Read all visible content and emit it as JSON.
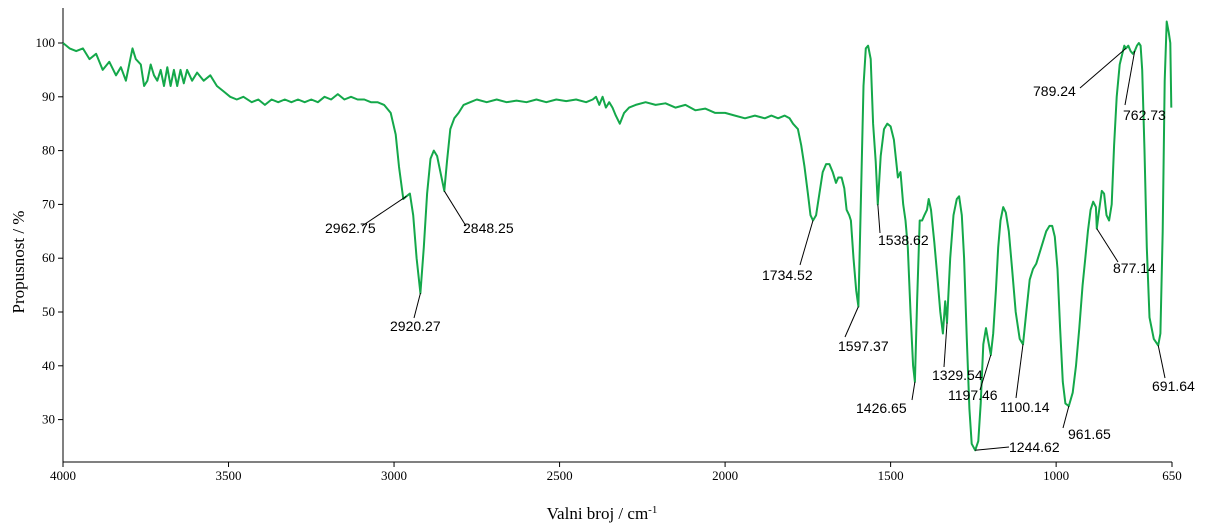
{
  "chart_data": {
    "type": "line",
    "xlabel": "Valni broj / cm",
    "xlabel_superscript": "-1",
    "ylabel": "Propusnost / %",
    "xlim": [
      4000,
      650
    ],
    "x_reversed": true,
    "ylim": [
      22,
      106
    ],
    "xticks": [
      4000,
      3500,
      3000,
      2500,
      2000,
      1500,
      1000,
      650
    ],
    "yticks": [
      30,
      40,
      50,
      60,
      70,
      80,
      90,
      100
    ],
    "grid": false,
    "line_color": "#14a84a",
    "series": [
      {
        "points": [
          [
            4000,
            100
          ],
          [
            3980,
            99
          ],
          [
            3960,
            98.5
          ],
          [
            3940,
            99
          ],
          [
            3920,
            97
          ],
          [
            3900,
            98
          ],
          [
            3880,
            95
          ],
          [
            3860,
            96.5
          ],
          [
            3840,
            94
          ],
          [
            3825,
            95.5
          ],
          [
            3810,
            93
          ],
          [
            3800,
            96
          ],
          [
            3790,
            99
          ],
          [
            3780,
            97
          ],
          [
            3765,
            96
          ],
          [
            3755,
            92
          ],
          [
            3745,
            93
          ],
          [
            3735,
            96
          ],
          [
            3725,
            94
          ],
          [
            3715,
            93
          ],
          [
            3705,
            95
          ],
          [
            3695,
            92
          ],
          [
            3685,
            95.5
          ],
          [
            3675,
            92
          ],
          [
            3665,
            95
          ],
          [
            3655,
            92
          ],
          [
            3645,
            95
          ],
          [
            3635,
            92.5
          ],
          [
            3625,
            95
          ],
          [
            3610,
            93
          ],
          [
            3595,
            94.5
          ],
          [
            3575,
            93
          ],
          [
            3555,
            94
          ],
          [
            3535,
            92
          ],
          [
            3515,
            91
          ],
          [
            3495,
            90
          ],
          [
            3475,
            89.5
          ],
          [
            3455,
            90
          ],
          [
            3430,
            89
          ],
          [
            3410,
            89.5
          ],
          [
            3390,
            88.5
          ],
          [
            3370,
            89.5
          ],
          [
            3350,
            89
          ],
          [
            3330,
            89.5
          ],
          [
            3310,
            89
          ],
          [
            3290,
            89.5
          ],
          [
            3270,
            89
          ],
          [
            3250,
            89.5
          ],
          [
            3230,
            89
          ],
          [
            3210,
            90
          ],
          [
            3190,
            89.5
          ],
          [
            3170,
            90.5
          ],
          [
            3150,
            89.5
          ],
          [
            3130,
            90
          ],
          [
            3110,
            89.5
          ],
          [
            3090,
            89.5
          ],
          [
            3070,
            89
          ],
          [
            3050,
            89
          ],
          [
            3030,
            88.5
          ],
          [
            3010,
            87
          ],
          [
            2995,
            83
          ],
          [
            2985,
            77
          ],
          [
            2972,
            71
          ],
          [
            2962.75,
            71.5
          ],
          [
            2952,
            72
          ],
          [
            2942,
            68
          ],
          [
            2932,
            60
          ],
          [
            2920.27,
            53.5
          ],
          [
            2910,
            62
          ],
          [
            2900,
            72
          ],
          [
            2890,
            78.5
          ],
          [
            2880,
            80
          ],
          [
            2870,
            79
          ],
          [
            2860,
            76
          ],
          [
            2848.25,
            72.5
          ],
          [
            2840,
            78
          ],
          [
            2830,
            84
          ],
          [
            2818,
            86
          ],
          [
            2805,
            87
          ],
          [
            2790,
            88.5
          ],
          [
            2770,
            89
          ],
          [
            2750,
            89.5
          ],
          [
            2720,
            89
          ],
          [
            2690,
            89.5
          ],
          [
            2660,
            89
          ],
          [
            2630,
            89.3
          ],
          [
            2600,
            89
          ],
          [
            2570,
            89.5
          ],
          [
            2540,
            89
          ],
          [
            2510,
            89.5
          ],
          [
            2480,
            89.2
          ],
          [
            2450,
            89.5
          ],
          [
            2420,
            89
          ],
          [
            2400,
            89.5
          ],
          [
            2390,
            90
          ],
          [
            2380,
            88.5
          ],
          [
            2370,
            90
          ],
          [
            2360,
            88
          ],
          [
            2350,
            89
          ],
          [
            2340,
            88
          ],
          [
            2330,
            86.5
          ],
          [
            2318,
            85
          ],
          [
            2305,
            87
          ],
          [
            2290,
            88
          ],
          [
            2270,
            88.5
          ],
          [
            2240,
            89
          ],
          [
            2210,
            88.5
          ],
          [
            2180,
            88.8
          ],
          [
            2150,
            88
          ],
          [
            2120,
            88.5
          ],
          [
            2090,
            87.5
          ],
          [
            2060,
            87.8
          ],
          [
            2030,
            87
          ],
          [
            2000,
            87
          ],
          [
            1970,
            86.5
          ],
          [
            1940,
            86
          ],
          [
            1910,
            86.5
          ],
          [
            1880,
            86
          ],
          [
            1860,
            86.5
          ],
          [
            1840,
            86
          ],
          [
            1820,
            86.5
          ],
          [
            1805,
            86
          ],
          [
            1795,
            85
          ],
          [
            1780,
            84
          ],
          [
            1770,
            81
          ],
          [
            1760,
            77
          ],
          [
            1750,
            72
          ],
          [
            1742,
            68
          ],
          [
            1734.52,
            67
          ],
          [
            1725,
            68
          ],
          [
            1715,
            72
          ],
          [
            1705,
            76
          ],
          [
            1695,
            77.5
          ],
          [
            1685,
            77.5
          ],
          [
            1675,
            76
          ],
          [
            1665,
            74
          ],
          [
            1658,
            75
          ],
          [
            1648,
            75
          ],
          [
            1640,
            73
          ],
          [
            1633,
            69
          ],
          [
            1625,
            68
          ],
          [
            1620,
            67
          ],
          [
            1612,
            60
          ],
          [
            1604,
            54
          ],
          [
            1597.37,
            51
          ],
          [
            1590,
            70
          ],
          [
            1582,
            92
          ],
          [
            1575,
            99
          ],
          [
            1568,
            99.5
          ],
          [
            1560,
            97
          ],
          [
            1553,
            85
          ],
          [
            1545,
            78
          ],
          [
            1538.62,
            70
          ],
          [
            1530,
            79
          ],
          [
            1520,
            84
          ],
          [
            1510,
            85
          ],
          [
            1500,
            84.5
          ],
          [
            1490,
            82
          ],
          [
            1483,
            78
          ],
          [
            1478,
            75
          ],
          [
            1470,
            76
          ],
          [
            1462,
            70
          ],
          [
            1455,
            67
          ],
          [
            1448,
            62
          ],
          [
            1440,
            50
          ],
          [
            1432,
            40
          ],
          [
            1426.65,
            37
          ],
          [
            1420,
            52
          ],
          [
            1412,
            67
          ],
          [
            1405,
            67
          ],
          [
            1398,
            68
          ],
          [
            1390,
            69
          ],
          [
            1385,
            71
          ],
          [
            1378,
            69
          ],
          [
            1368,
            63
          ],
          [
            1358,
            56
          ],
          [
            1350,
            50
          ],
          [
            1342,
            46
          ],
          [
            1335,
            52
          ],
          [
            1329.54,
            48
          ],
          [
            1320,
            60
          ],
          [
            1310,
            68
          ],
          [
            1300,
            71
          ],
          [
            1293,
            71.5
          ],
          [
            1285,
            68
          ],
          [
            1278,
            60
          ],
          [
            1270,
            45
          ],
          [
            1262,
            32
          ],
          [
            1255,
            25.5
          ],
          [
            1244.62,
            24.3
          ],
          [
            1235,
            26
          ],
          [
            1228,
            33
          ],
          [
            1220,
            44
          ],
          [
            1212,
            47
          ],
          [
            1206,
            45
          ],
          [
            1197.46,
            42
          ],
          [
            1190,
            46
          ],
          [
            1182,
            54
          ],
          [
            1175,
            62
          ],
          [
            1168,
            67
          ],
          [
            1160,
            69.5
          ],
          [
            1152,
            68.5
          ],
          [
            1143,
            65
          ],
          [
            1133,
            58
          ],
          [
            1122,
            50
          ],
          [
            1110,
            45
          ],
          [
            1100.14,
            44
          ],
          [
            1090,
            50
          ],
          [
            1080,
            56
          ],
          [
            1070,
            58
          ],
          [
            1060,
            59
          ],
          [
            1050,
            61
          ],
          [
            1040,
            63
          ],
          [
            1030,
            65
          ],
          [
            1020,
            66
          ],
          [
            1012,
            66
          ],
          [
            1004,
            64
          ],
          [
            996,
            58
          ],
          [
            988,
            47
          ],
          [
            980,
            37
          ],
          [
            972,
            33
          ],
          [
            961.65,
            32.5
          ],
          [
            950,
            35
          ],
          [
            940,
            40
          ],
          [
            930,
            47
          ],
          [
            920,
            55
          ],
          [
            912,
            60
          ],
          [
            904,
            65
          ],
          [
            896,
            69
          ],
          [
            888,
            70.5
          ],
          [
            880,
            69.5
          ],
          [
            877.14,
            65.5
          ],
          [
            870,
            69
          ],
          [
            862,
            72.5
          ],
          [
            855,
            72
          ],
          [
            848,
            68
          ],
          [
            840,
            67
          ],
          [
            832,
            70
          ],
          [
            825,
            81
          ],
          [
            817,
            90
          ],
          [
            808,
            96
          ],
          [
            800,
            98
          ],
          [
            794,
            99.5
          ],
          [
            789.24,
            99
          ],
          [
            782,
            99.5
          ],
          [
            775,
            98.5
          ],
          [
            768,
            98
          ],
          [
            762.73,
            98.5
          ],
          [
            756,
            99.5
          ],
          [
            750,
            100
          ],
          [
            745,
            99.5
          ],
          [
            740,
            95
          ],
          [
            733,
            80
          ],
          [
            726,
            62
          ],
          [
            718,
            49
          ],
          [
            705,
            45
          ],
          [
            691.64,
            43.8
          ],
          [
            685,
            46
          ],
          [
            678,
            65
          ],
          [
            672,
            93
          ],
          [
            666,
            104
          ],
          [
            660,
            102
          ],
          [
            655,
            100
          ],
          [
            652,
            88
          ]
        ]
      }
    ],
    "annotations": [
      {
        "x": 2962.75,
        "y": 71.5,
        "label": "2962.75"
      },
      {
        "x": 2920.27,
        "y": 53.5,
        "label": "2920.27"
      },
      {
        "x": 2848.25,
        "y": 72.5,
        "label": "2848.25"
      },
      {
        "x": 1734.52,
        "y": 67,
        "label": "1734.52"
      },
      {
        "x": 1597.37,
        "y": 51,
        "label": "1597.37"
      },
      {
        "x": 1538.62,
        "y": 70,
        "label": "1538.62"
      },
      {
        "x": 1426.65,
        "y": 37,
        "label": "1426.65"
      },
      {
        "x": 1329.54,
        "y": 48,
        "label": "1329.54"
      },
      {
        "x": 1244.62,
        "y": 24.3,
        "label": "1244.62"
      },
      {
        "x": 1197.46,
        "y": 42,
        "label": "1197.46"
      },
      {
        "x": 1100.14,
        "y": 44,
        "label": "1100.14"
      },
      {
        "x": 961.65,
        "y": 32.5,
        "label": "961.65"
      },
      {
        "x": 877.14,
        "y": 65.5,
        "label": "877.14"
      },
      {
        "x": 789.24,
        "y": 99,
        "label": "789.24"
      },
      {
        "x": 762.73,
        "y": 98.5,
        "label": "762.73"
      },
      {
        "x": 691.64,
        "y": 43.8,
        "label": "691.64"
      }
    ]
  }
}
